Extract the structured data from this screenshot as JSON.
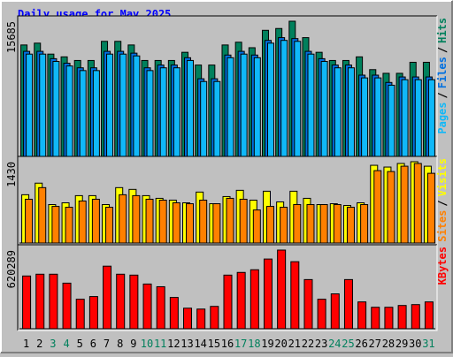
{
  "chart_data": [
    {
      "type": "bar",
      "title": "Daily usage for May 2025",
      "ylim": [
        0,
        15685
      ],
      "yticks": [
        15685
      ],
      "legend_separator": "/",
      "series": [
        {
          "name": "Hits",
          "color": "#00805c",
          "values": [
            12930,
            13140,
            11870,
            11550,
            11130,
            11130,
            13350,
            13350,
            12930,
            11130,
            11130,
            11130,
            12080,
            10600,
            10600,
            12930,
            13250,
            12610,
            14630,
            14840,
            15685,
            13780,
            12080,
            11130,
            11130,
            11550,
            10070,
            9640,
            9640,
            10920,
            10920
          ]
        },
        {
          "name": "Files",
          "color": "#0070e0",
          "values": [
            12190,
            12190,
            11340,
            10810,
            10280,
            10280,
            12190,
            12190,
            11980,
            10280,
            10600,
            10600,
            11450,
            9010,
            9010,
            11760,
            12190,
            11760,
            13460,
            13780,
            13670,
            12190,
            11340,
            10600,
            10600,
            9430,
            9430,
            8580,
            9220,
            9220,
            9220
          ]
        },
        {
          "name": "Pages",
          "color": "#10b8f8",
          "values": [
            11870,
            11870,
            11020,
            10490,
            9960,
            9960,
            11870,
            11870,
            11660,
            9960,
            10280,
            10280,
            11130,
            8690,
            8690,
            11450,
            11870,
            11450,
            13140,
            13460,
            13350,
            11870,
            11020,
            10280,
            10280,
            9110,
            9110,
            8260,
            8900,
            8900,
            8900
          ]
        }
      ]
    },
    {
      "type": "bar",
      "ylim": [
        0,
        1430
      ],
      "yticks": [
        1430
      ],
      "legend_separator": "/",
      "series": [
        {
          "name": "Visits",
          "color": "#ffff00",
          "values": [
            849,
            1053,
            676,
            707,
            833,
            833,
            676,
            974,
            943,
            833,
            786,
            754,
            707,
            896,
            691,
            817,
            927,
            754,
            911,
            723,
            911,
            786,
            676,
            691,
            660,
            707,
            1367,
            1336,
            1399,
            1430,
            1351
          ]
        },
        {
          "name": "Sites",
          "color": "#ff8000",
          "values": [
            770,
            974,
            644,
            629,
            739,
            770,
            629,
            849,
            833,
            770,
            754,
            707,
            691,
            754,
            691,
            786,
            770,
            581,
            644,
            629,
            676,
            676,
            676,
            676,
            629,
            676,
            1273,
            1257,
            1351,
            1399,
            1226
          ]
        }
      ]
    },
    {
      "type": "bar",
      "ylim": [
        0,
        620289
      ],
      "yticks": [
        620289
      ],
      "categories": [
        "1",
        "2",
        "3",
        "4",
        "5",
        "6",
        "7",
        "8",
        "9",
        "10",
        "11",
        "12",
        "13",
        "14",
        "15",
        "16",
        "17",
        "18",
        "19",
        "20",
        "21",
        "22",
        "23",
        "24",
        "25",
        "26",
        "27",
        "28",
        "29",
        "30",
        "31"
      ],
      "category_colors": [
        "#000000",
        "#000000",
        "#00805c",
        "#00805c",
        "#000000",
        "#000000",
        "#000000",
        "#000000",
        "#000000",
        "#00805c",
        "#00805c",
        "#000000",
        "#000000",
        "#000000",
        "#000000",
        "#000000",
        "#00805c",
        "#00805c",
        "#000000",
        "#000000",
        "#000000",
        "#000000",
        "#000000",
        "#00805c",
        "#00805c",
        "#000000",
        "#000000",
        "#000000",
        "#000000",
        "#000000",
        "#00805c"
      ],
      "series": [
        {
          "name": "KBytes",
          "color": "#ff0000",
          "values": [
            415900,
            430000,
            430000,
            359500,
            232600,
            253800,
            493400,
            430000,
            422900,
            352500,
            331300,
            246700,
            162100,
            155100,
            176200,
            422900,
            444100,
            465200,
            549800,
            620289,
            528700,
            387700,
            232600,
            274900,
            387700,
            211500,
            169200,
            169200,
            183300,
            190300,
            211500
          ]
        }
      ]
    }
  ]
}
